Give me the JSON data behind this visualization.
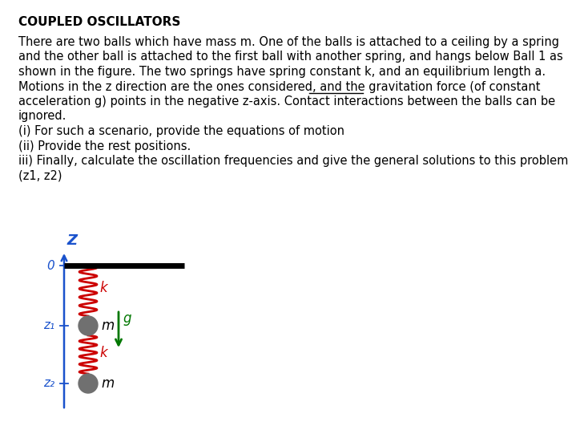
{
  "title": "COUPLED OSCILLATORS",
  "body_lines": [
    "There are two balls which have mass m. One of the balls is attached to a ceiling by a spring",
    "and the other ball is attached to the first ball with another spring, and hangs below Ball 1 as",
    "shown in the figure. The two springs have spring constant k, and an equilibrium length a.",
    "Motions in the z direction are the ones considered, and the gravitation force (of constant",
    "acceleration g) points in the negative z-axis. Contact interactions between the balls can be",
    "ignored.",
    "(i) For such a scenario, provide the equations of motion",
    "(ii) Provide the rest positions.",
    "iii) Finally, calculate the oscillation frequencies and give the general solutions to this problem",
    "(z1, z2)"
  ],
  "bg_color": "#ffffff",
  "text_color": "#000000",
  "title_fontsize": 11,
  "body_fontsize": 10.5,
  "diagram": {
    "axis_color": "#1a52cc",
    "ceiling_color": "#000000",
    "spring_color": "#cc0000",
    "ball_color": "#707070",
    "arrow_color": "#007700",
    "black": "#000000"
  }
}
